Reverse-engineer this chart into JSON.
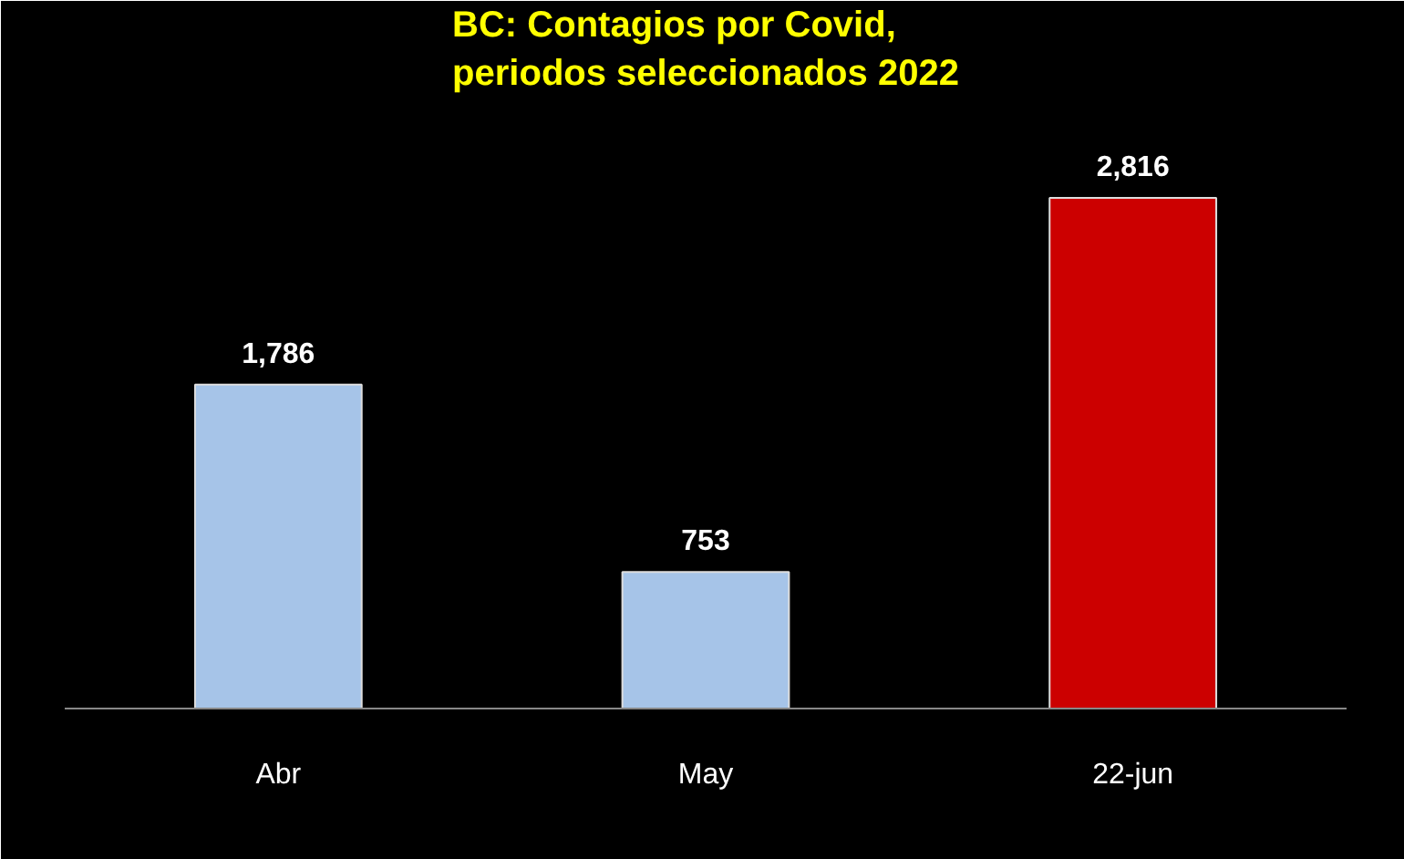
{
  "chart_data": {
    "type": "bar",
    "title": "BC: Contagios por Covid,\nperiodos seleccionados 2022",
    "categories": [
      "Abr",
      "May",
      "22-jun"
    ],
    "values": [
      1786,
      753,
      2816
    ],
    "colors": [
      "#a6c4e8",
      "#a6c4e8",
      "#cc0000"
    ],
    "value_labels": [
      "1,786",
      "753",
      "2,816"
    ]
  }
}
